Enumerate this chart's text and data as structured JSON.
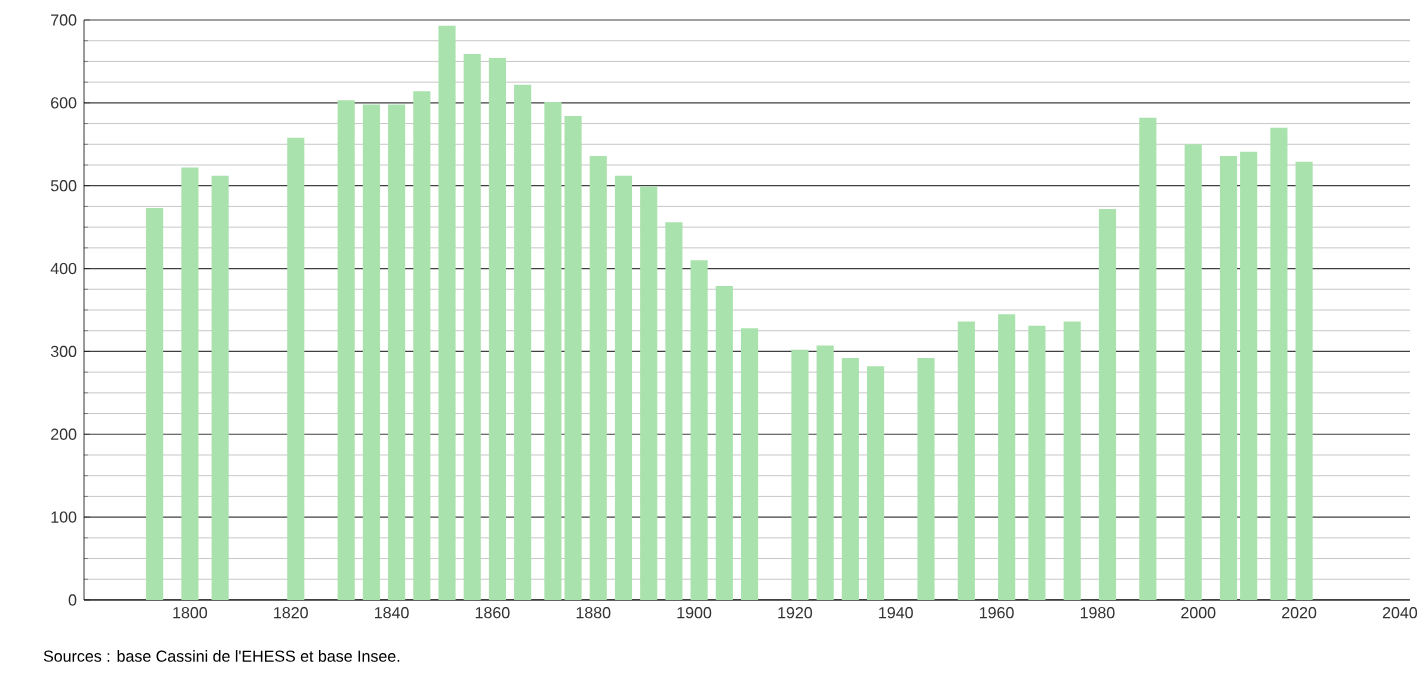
{
  "chart_data": {
    "type": "bar",
    "color": "#a9e2ad",
    "x": [
      1793,
      1800,
      1806,
      1821,
      1831,
      1836,
      1841,
      1846,
      1851,
      1856,
      1861,
      1866,
      1872,
      1876,
      1881,
      1886,
      1891,
      1896,
      1901,
      1906,
      1911,
      1921,
      1926,
      1931,
      1936,
      1946,
      1954,
      1962,
      1968,
      1975,
      1982,
      1990,
      1999,
      2006,
      2010,
      2016,
      2021
    ],
    "values": [
      473,
      522,
      512,
      558,
      603,
      598,
      598,
      614,
      693,
      659,
      654,
      622,
      601,
      584,
      536,
      512,
      499,
      456,
      410,
      379,
      328,
      302,
      307,
      292,
      282,
      292,
      336,
      345,
      331,
      336,
      472,
      582,
      550,
      536,
      541,
      570,
      529
    ],
    "xlim": [
      1779,
      2042
    ],
    "xticks": [
      1800,
      1820,
      1840,
      1860,
      1880,
      1900,
      1920,
      1940,
      1960,
      1980,
      2000,
      2020,
      2040
    ],
    "ylim": [
      0,
      700
    ],
    "yticks": [
      0,
      100,
      200,
      300,
      400,
      500,
      600,
      700
    ],
    "grid": "y",
    "annotations": [
      "Sources : base Cassini de l'EHESS et base Insee."
    ]
  }
}
